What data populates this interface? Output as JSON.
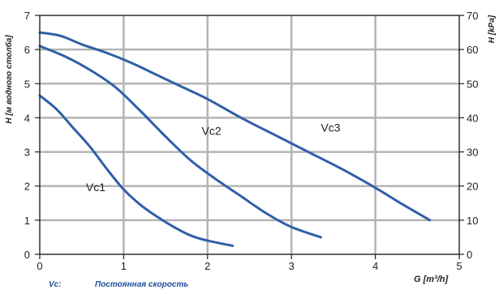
{
  "chart_data": {
    "type": "line",
    "xlabel": "G [m³/h]",
    "ylabel_left": "H [м водного столба]",
    "ylabel_right": "H [kPa]",
    "xlim": [
      0,
      5
    ],
    "ylim_left": [
      0,
      7
    ],
    "ylim_right": [
      0,
      70
    ],
    "x_ticks": [
      "0",
      "1",
      "2",
      "3",
      "4",
      "5"
    ],
    "y_ticks_left": [
      "0",
      "1",
      "2",
      "3",
      "4",
      "5",
      "6",
      "7"
    ],
    "y_ticks_right": [
      "0",
      "10",
      "20",
      "30",
      "40",
      "50",
      "60",
      "70"
    ],
    "grid": true,
    "series": [
      {
        "name": "Vc1",
        "label_at": [
          0.55,
          1.85
        ],
        "x": [
          0,
          0.2,
          0.4,
          0.6,
          0.8,
          1.0,
          1.2,
          1.4,
          1.6,
          1.8,
          2.0,
          2.3
        ],
        "y": [
          4.65,
          4.25,
          3.7,
          3.15,
          2.5,
          1.9,
          1.45,
          1.1,
          0.8,
          0.55,
          0.4,
          0.25
        ]
      },
      {
        "name": "Vc2",
        "label_at": [
          1.93,
          3.5
        ],
        "x": [
          0,
          0.3,
          0.6,
          0.9,
          1.2,
          1.5,
          1.8,
          2.1,
          2.4,
          2.7,
          3.0,
          3.35
        ],
        "y": [
          6.1,
          5.8,
          5.4,
          4.9,
          4.2,
          3.45,
          2.75,
          2.2,
          1.7,
          1.2,
          0.8,
          0.5
        ]
      },
      {
        "name": "Vc3",
        "label_at": [
          3.35,
          3.6
        ],
        "x": [
          0,
          0.25,
          0.5,
          0.8,
          1.1,
          1.4,
          1.7,
          2.0,
          2.4,
          2.8,
          3.2,
          3.6,
          4.0,
          4.3,
          4.65
        ],
        "y": [
          6.5,
          6.4,
          6.15,
          5.9,
          5.6,
          5.25,
          4.9,
          4.55,
          4.0,
          3.5,
          3.0,
          2.5,
          1.95,
          1.5,
          1.0
        ]
      }
    ],
    "line_color": "#2f5fa8",
    "grid_color": "#b4b4b4",
    "frame_color": "#222222"
  },
  "footnote": {
    "key": "Vc:",
    "text": "Постоянная скорость"
  }
}
